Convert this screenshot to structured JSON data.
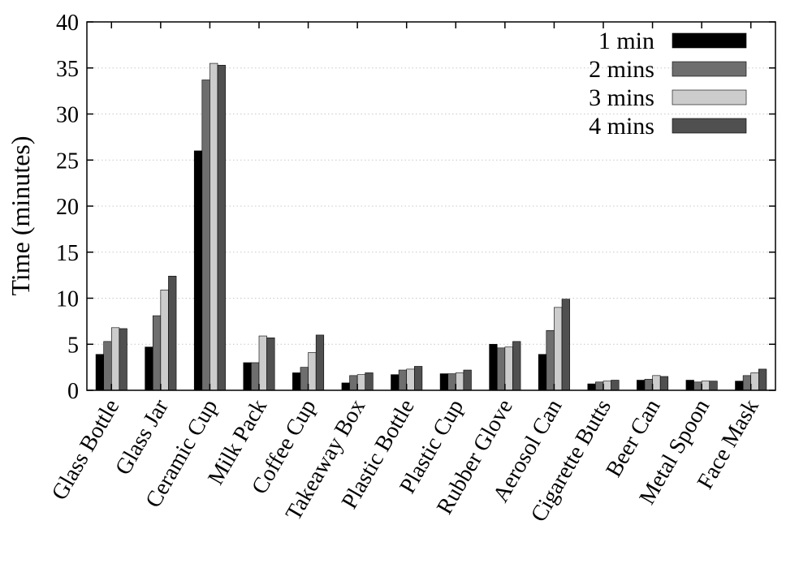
{
  "chart_data": {
    "type": "bar",
    "title": "",
    "xlabel": "",
    "ylabel": "Time (minutes)",
    "ylim": [
      0,
      40
    ],
    "yticks": [
      0,
      5,
      10,
      15,
      20,
      25,
      30,
      35,
      40
    ],
    "grid": "horizontal dotted",
    "legend_position": "top-right",
    "categories": [
      "Glass Bottle",
      "Glass Jar",
      "Ceramic Cup",
      "Milk Pack",
      "Coffee Cup",
      "Takeaway Box",
      "Plastic Bottle",
      "Plastic Cup",
      "Rubber Glove",
      "Aerosol Can",
      "Cigarette Butts",
      "Beer Can",
      "Metal Spoon",
      "Face Mask"
    ],
    "series": [
      {
        "name": "1 min",
        "color": "#000000",
        "values": [
          3.9,
          4.7,
          26.0,
          3.0,
          1.9,
          0.8,
          1.7,
          1.8,
          5.0,
          3.9,
          0.7,
          1.1,
          1.1,
          1.0
        ]
      },
      {
        "name": "2 mins",
        "color": "#6e6e6e",
        "values": [
          5.3,
          8.1,
          33.7,
          3.0,
          2.5,
          1.6,
          2.2,
          1.8,
          4.6,
          6.5,
          0.9,
          1.2,
          0.9,
          1.6
        ]
      },
      {
        "name": "3 mins",
        "color": "#cccccc",
        "values": [
          6.8,
          10.9,
          35.5,
          5.9,
          4.1,
          1.7,
          2.3,
          1.9,
          4.7,
          9.0,
          1.0,
          1.6,
          1.0,
          1.9
        ]
      },
      {
        "name": "4 mins",
        "color": "#505050",
        "values": [
          6.7,
          12.4,
          35.3,
          5.7,
          6.0,
          1.9,
          2.6,
          2.2,
          5.3,
          9.9,
          1.1,
          1.5,
          1.0,
          2.3
        ]
      }
    ]
  }
}
